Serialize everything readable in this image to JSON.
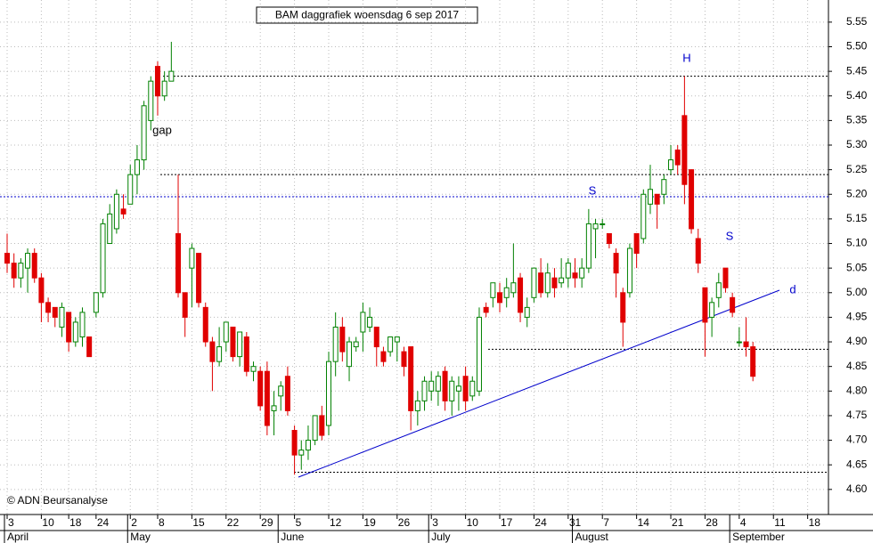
{
  "chart_data": {
    "type": "candlestick",
    "title": "BAM daggrafiek woensdag 6 sep 2017",
    "copyright": "© ADN Beursanalyse",
    "categories": [
      "3",
      null,
      null,
      null,
      null,
      "10",
      null,
      null,
      null,
      "18",
      null,
      null,
      null,
      "24",
      null,
      null,
      null,
      null,
      "2",
      null,
      null,
      null,
      "8",
      null,
      null,
      null,
      null,
      "15",
      null,
      null,
      null,
      null,
      "22",
      null,
      null,
      null,
      null,
      "29",
      null,
      null,
      null,
      null,
      "5",
      null,
      null,
      null,
      null,
      "12",
      null,
      null,
      null,
      null,
      "19",
      null,
      null,
      null,
      null,
      "26",
      null,
      null,
      null,
      null,
      "3",
      null,
      null,
      null,
      null,
      "10",
      null,
      null,
      null,
      null,
      "17",
      null,
      null,
      null,
      null,
      "24",
      null,
      null,
      null,
      null,
      "31",
      null,
      null,
      null,
      null,
      "7",
      null,
      null,
      null,
      null,
      "14",
      null,
      null,
      null,
      null,
      "21",
      null,
      null,
      null,
      null,
      "28",
      null,
      null,
      null,
      null,
      "4",
      null,
      null,
      null,
      null,
      "11",
      null,
      null,
      null,
      null,
      "18",
      null,
      null
    ],
    "months": [
      "April",
      null,
      null,
      null,
      null,
      null,
      null,
      null,
      null,
      null,
      null,
      null,
      null,
      null,
      null,
      null,
      null,
      null,
      "May",
      null,
      null,
      null,
      null,
      null,
      null,
      null,
      null,
      null,
      null,
      null,
      null,
      null,
      null,
      null,
      null,
      null,
      null,
      null,
      null,
      null,
      "June",
      null,
      null,
      null,
      null,
      null,
      null,
      null,
      null,
      null,
      null,
      null,
      null,
      null,
      null,
      null,
      null,
      null,
      null,
      null,
      null,
      null,
      "July",
      null,
      null,
      null,
      null,
      null,
      null,
      null,
      null,
      null,
      null,
      null,
      null,
      null,
      null,
      null,
      null,
      null,
      null,
      null,
      null,
      "August",
      null,
      null,
      null,
      null,
      null,
      null,
      null,
      null,
      null,
      null,
      null,
      null,
      null,
      null,
      null,
      null,
      null,
      null,
      null,
      null,
      null,
      null,
      "September",
      null,
      null,
      null,
      null,
      null,
      null,
      null,
      null,
      null,
      null,
      null,
      null,
      null
    ],
    "open": [
      5.08,
      5.06,
      5.03,
      5.05,
      5.08,
      5.03,
      4.98,
      4.97,
      4.93,
      4.96,
      4.9,
      4.91,
      4.91,
      4.96,
      5.0,
      5.1,
      5.13,
      5.17,
      5.18,
      5.24,
      5.27,
      5.35,
      5.46,
      5.4,
      5.43,
      5.12,
      5.0,
      5.05,
      5.08,
      4.97,
      4.9,
      4.86,
      4.9,
      4.93,
      4.87,
      4.91,
      4.84,
      4.84,
      4.84,
      4.76,
      4.79,
      4.83,
      4.72,
      4.67,
      4.68,
      4.7,
      4.75,
      4.73,
      4.86,
      4.93,
      4.85,
      4.89,
      4.92,
      4.93,
      4.93,
      4.88,
      4.88,
      4.9,
      4.88,
      4.89,
      4.76,
      4.78,
      4.8,
      4.8,
      4.84,
      4.78,
      4.8,
      4.83,
      4.79,
      4.8,
      4.97,
      4.99,
      5.0,
      4.99,
      5.0,
      5.03,
      4.95,
      4.99,
      5.04,
      5.0,
      5.03,
      5.02,
      5.03,
      5.04,
      5.03,
      5.05,
      5.13,
      5.14,
      5.12,
      5.08,
      5.0,
      5.0,
      5.12,
      5.11,
      5.18,
      5.2,
      5.2,
      5.25,
      5.29,
      5.36,
      5.25,
      5.11,
      5.01,
      4.95,
      4.99,
      5.05,
      4.99,
      4.9,
      4.9,
      4.89,
      null,
      null,
      null,
      null,
      null,
      null,
      null,
      null,
      null,
      null
    ],
    "high": [
      5.12,
      5.08,
      5.07,
      5.09,
      5.09,
      5.04,
      4.99,
      4.97,
      4.98,
      4.96,
      4.95,
      4.97,
      4.91,
      5.0,
      5.15,
      5.18,
      5.21,
      5.2,
      5.26,
      5.3,
      5.39,
      5.44,
      5.47,
      5.45,
      5.51,
      5.24,
      5.0,
      5.1,
      5.08,
      4.98,
      4.91,
      4.93,
      4.94,
      4.93,
      4.92,
      4.92,
      4.86,
      4.85,
      4.86,
      4.8,
      4.82,
      4.85,
      4.73,
      4.7,
      4.73,
      4.75,
      4.77,
      4.88,
      4.96,
      4.95,
      4.91,
      4.91,
      4.98,
      4.97,
      4.93,
      4.89,
      4.91,
      4.91,
      4.89,
      4.89,
      4.8,
      4.83,
      4.84,
      4.84,
      4.85,
      4.83,
      4.83,
      4.85,
      4.83,
      4.97,
      4.98,
      5.02,
      5.02,
      5.03,
      5.1,
      5.04,
      4.99,
      5.05,
      5.07,
      5.06,
      5.05,
      5.07,
      5.07,
      5.07,
      5.07,
      5.17,
      5.15,
      5.15,
      5.12,
      5.09,
      5.01,
      5.1,
      5.12,
      5.21,
      5.26,
      5.2,
      5.24,
      5.3,
      5.3,
      5.44,
      5.25,
      5.13,
      5.01,
      4.99,
      5.04,
      5.05,
      5.0,
      4.93,
      4.95,
      4.9,
      null,
      null,
      null,
      null,
      null,
      null,
      null,
      null,
      null,
      null
    ],
    "low": [
      5.04,
      5.01,
      5.01,
      5.0,
      5.02,
      4.94,
      4.94,
      4.93,
      4.91,
      4.88,
      4.89,
      4.89,
      4.87,
      4.95,
      4.99,
      5.1,
      5.12,
      5.15,
      5.18,
      5.2,
      5.25,
      5.33,
      5.36,
      5.39,
      5.43,
      4.99,
      4.91,
      4.97,
      4.97,
      4.89,
      4.8,
      4.85,
      4.88,
      4.86,
      4.85,
      4.83,
      4.82,
      4.76,
      4.71,
      4.71,
      4.76,
      4.75,
      4.63,
      4.64,
      4.66,
      4.69,
      4.7,
      4.71,
      4.83,
      4.86,
      4.82,
      4.88,
      4.88,
      4.92,
      4.85,
      4.85,
      4.87,
      4.86,
      4.83,
      4.72,
      4.73,
      4.76,
      4.78,
      4.77,
      4.76,
      4.75,
      4.76,
      4.76,
      4.78,
      4.79,
      4.95,
      4.97,
      4.96,
      4.97,
      4.99,
      4.94,
      4.93,
      4.98,
      4.99,
      4.99,
      4.99,
      5.01,
      5.01,
      5.01,
      5.01,
      5.04,
      5.07,
      5.13,
      5.09,
      4.99,
      4.89,
      4.99,
      5.05,
      5.1,
      5.16,
      5.13,
      5.18,
      5.24,
      5.24,
      5.18,
      5.12,
      5.04,
      4.87,
      4.91,
      4.97,
      5.0,
      4.95,
      4.89,
      4.87,
      4.82,
      null,
      null,
      null,
      null,
      null,
      null,
      null,
      null,
      null,
      null
    ],
    "close": [
      5.06,
      5.03,
      5.06,
      5.08,
      5.03,
      4.98,
      4.96,
      4.95,
      4.97,
      4.9,
      4.94,
      4.96,
      4.87,
      5.0,
      5.14,
      5.16,
      5.2,
      5.16,
      5.24,
      5.27,
      5.38,
      5.43,
      5.4,
      5.43,
      5.45,
      5.0,
      4.95,
      5.09,
      4.98,
      4.9,
      4.86,
      4.89,
      4.94,
      4.87,
      4.92,
      4.84,
      4.85,
      4.77,
      4.73,
      4.77,
      4.81,
      4.76,
      4.67,
      4.68,
      4.7,
      4.75,
      4.71,
      4.86,
      4.93,
      4.88,
      4.9,
      4.9,
      4.96,
      4.95,
      4.89,
      4.86,
      4.91,
      4.91,
      4.85,
      4.76,
      4.78,
      4.82,
      4.82,
      4.83,
      4.78,
      4.82,
      4.81,
      4.78,
      4.82,
      4.95,
      4.96,
      5.02,
      4.98,
      5.01,
      5.02,
      4.96,
      4.97,
      5.05,
      5.0,
      5.04,
      5.01,
      5.03,
      5.06,
      5.03,
      5.05,
      5.14,
      5.14,
      5.14,
      5.1,
      5.04,
      4.94,
      5.09,
      5.08,
      5.2,
      5.21,
      5.18,
      5.23,
      5.27,
      5.26,
      5.22,
      5.13,
      5.06,
      4.94,
      4.98,
      5.02,
      5.01,
      4.96,
      4.9,
      4.89,
      4.83,
      null,
      null,
      null,
      null,
      null,
      null,
      null,
      null,
      null,
      null
    ],
    "up_color": "#008000",
    "down_color": "#e00000",
    "ylim": [
      4.549,
      5.595
    ],
    "yticks": [
      {
        "value": 4.6,
        "label": "4.60"
      },
      {
        "value": 4.65,
        "label": "4.65"
      },
      {
        "value": 4.7,
        "label": "4.70"
      },
      {
        "value": 4.75,
        "label": "4.75"
      },
      {
        "value": 4.8,
        "label": "4.80"
      },
      {
        "value": 4.85,
        "label": "4.85"
      },
      {
        "value": 4.9,
        "label": "4.90"
      },
      {
        "value": 4.95,
        "label": "4.95"
      },
      {
        "value": 5.0,
        "label": "5.00"
      },
      {
        "value": 5.05,
        "label": "5.05"
      },
      {
        "value": 5.1,
        "label": "5.10"
      },
      {
        "value": 5.15,
        "label": "5.15"
      },
      {
        "value": 5.2,
        "label": "5.20"
      },
      {
        "value": 5.25,
        "label": "5.25"
      },
      {
        "value": 5.3,
        "label": "5.30"
      },
      {
        "value": 5.35,
        "label": "5.35"
      },
      {
        "value": 5.4,
        "label": "5.40"
      },
      {
        "value": 5.45,
        "label": "5.45"
      },
      {
        "value": 5.5,
        "label": "5.50"
      },
      {
        "value": 5.55,
        "label": "5.55"
      }
    ],
    "grid": true,
    "hlines": [
      {
        "value": 5.44,
        "color": "#000000"
      },
      {
        "value": 5.24,
        "color": "#000000"
      },
      {
        "value": 5.195,
        "color": "#0000cc"
      },
      {
        "value": 4.885,
        "color": "#000000"
      },
      {
        "value": 4.635,
        "color": "#000000"
      }
    ],
    "trendline": {
      "values": [
        4.625,
        5.005
      ],
      "color": "#0000cc"
    },
    "annotations": [
      {
        "text": "gap",
        "color": "#000000"
      },
      {
        "text": "S",
        "color": "#0000cc"
      },
      {
        "text": "H",
        "color": "#0000cc"
      },
      {
        "text": "S",
        "color": "#0000cc"
      },
      {
        "text": "d",
        "color": "#0000cc"
      }
    ]
  }
}
